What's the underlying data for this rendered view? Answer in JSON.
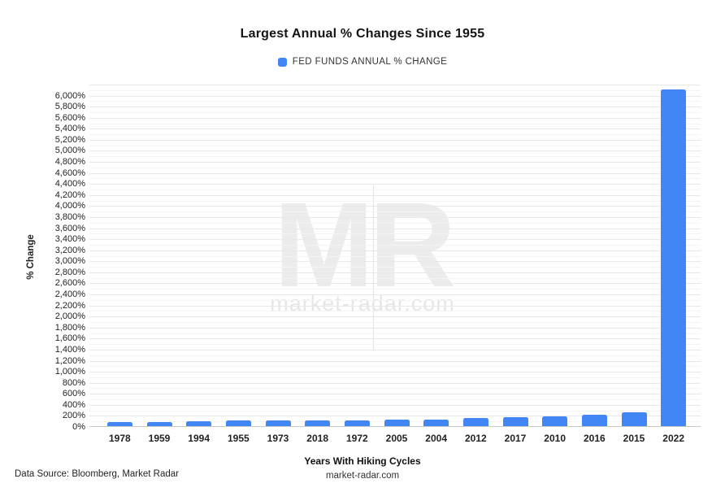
{
  "title": "Largest Annual % Changes Since 1955",
  "legend": {
    "label": "FED FUNDS ANNUAL % CHANGE",
    "swatch_color": "#4285f4"
  },
  "watermark": {
    "logo": "MR",
    "text": "market-radar.com"
  },
  "footer": {
    "source": "Data Source: Bloomberg, Market Radar",
    "site": "market-radar.com"
  },
  "chart_data": {
    "type": "bar",
    "title": "Largest Annual % Changes Since 1955",
    "xlabel": "Years With Hiking Cycles",
    "ylabel": "% Change",
    "legend_entries": [
      "FED FUNDS ANNUAL % CHANGE"
    ],
    "legend_position": "top",
    "grid": true,
    "bar_color": "#4285f4",
    "categories": [
      "1978",
      "1959",
      "1994",
      "1955",
      "1973",
      "2018",
      "1972",
      "2005",
      "2004",
      "2012",
      "2017",
      "2010",
      "2016",
      "2015",
      "2022"
    ],
    "values": [
      75,
      80,
      85,
      100,
      100,
      100,
      105,
      120,
      125,
      145,
      165,
      180,
      205,
      245,
      6100
    ],
    "ylim": [
      0,
      6200
    ],
    "y_label_step": 200,
    "y_grid_step": 100,
    "y_label_suffix": "%"
  }
}
